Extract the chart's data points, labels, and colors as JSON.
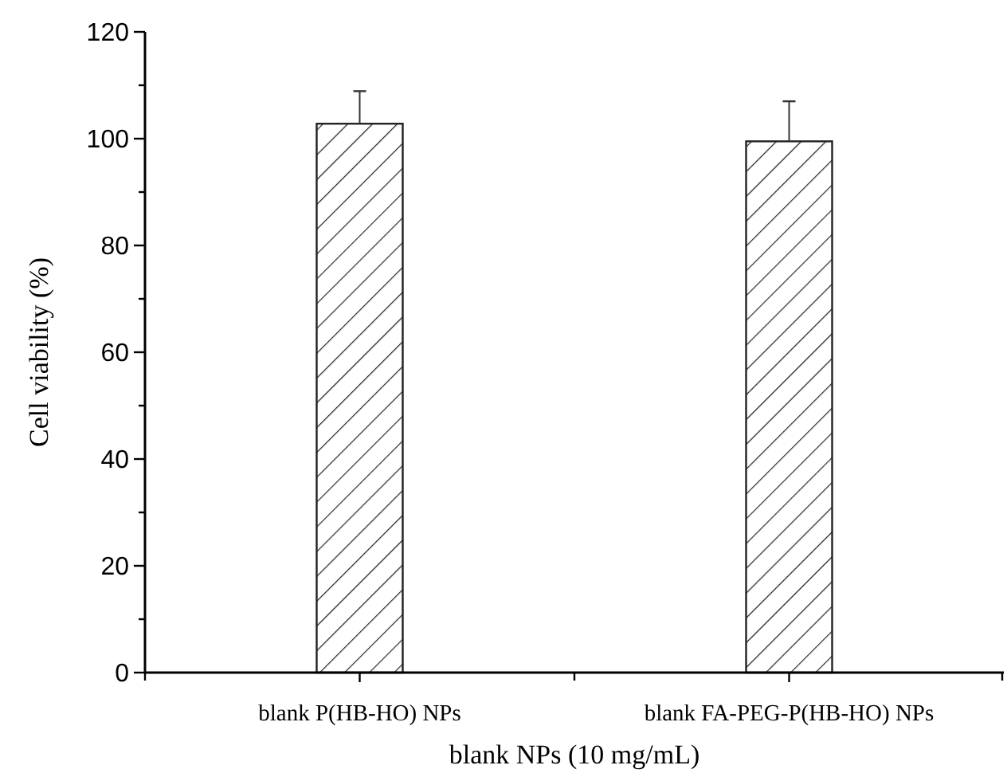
{
  "chart_data": {
    "type": "bar",
    "xlabel": "blank NPs (10 mg/mL)",
    "ylabel": "Cell viability (%)",
    "categories": [
      "blank P(HB-HO) NPs",
      "blank FA-PEG-P(HB-HO) NPs"
    ],
    "values": [
      102.8,
      99.5
    ],
    "errors": [
      [
        102.8,
        108.9
      ],
      [
        99.5,
        107
      ]
    ],
    "color": "#222222",
    "ylim": [
      0,
      120
    ],
    "yticks": [
      0,
      {
        "value": 10,
        "label": null
      },
      20,
      {
        "value": 30,
        "label": null
      },
      40,
      {
        "value": 50,
        "label": null
      },
      60,
      {
        "value": 70,
        "label": null
      },
      80,
      {
        "value": 90,
        "label": null
      },
      100,
      {
        "value": 110,
        "label": null
      },
      120
    ],
    "grid": false
  }
}
